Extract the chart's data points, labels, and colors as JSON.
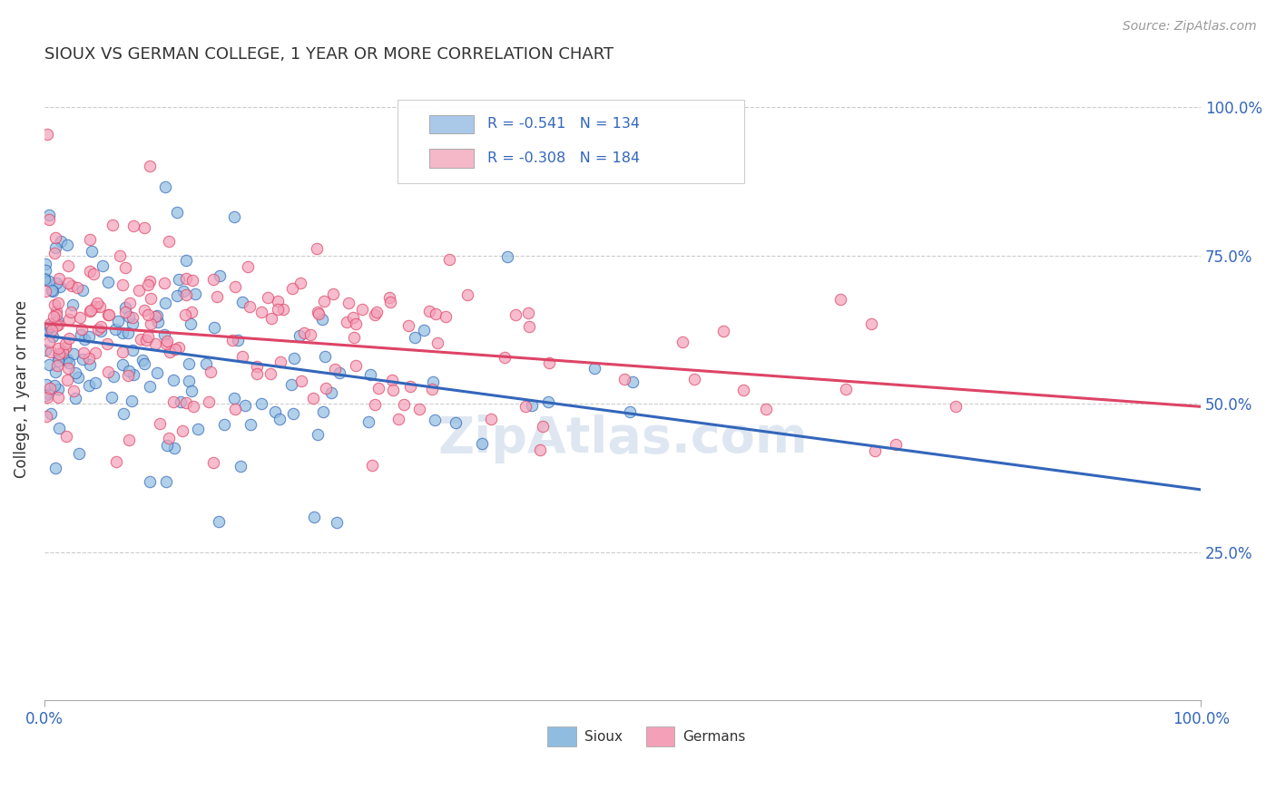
{
  "title": "SIOUX VS GERMAN COLLEGE, 1 YEAR OR MORE CORRELATION CHART",
  "source_text": "Source: ZipAtlas.com",
  "ylabel": "College, 1 year or more",
  "xlim": [
    0.0,
    1.0
  ],
  "ylim": [
    0.0,
    1.05
  ],
  "x_tick_labels": [
    "0.0%",
    "100.0%"
  ],
  "y_tick_labels_right": [
    "25.0%",
    "50.0%",
    "75.0%",
    "100.0%"
  ],
  "y_ticks_right": [
    0.25,
    0.5,
    0.75,
    1.0
  ],
  "legend_entries": [
    {
      "label": "R = -0.541   N = 134",
      "color": "#aac8e8"
    },
    {
      "label": "R = -0.308   N = 184",
      "color": "#f4b8c8"
    }
  ],
  "bottom_legend": [
    {
      "label": "Sioux",
      "color": "#90bce0"
    },
    {
      "label": "Germans",
      "color": "#f4a0b8"
    }
  ],
  "sioux_color": "#90bce0",
  "german_color": "#f4a0b8",
  "sioux_line_color": "#3366bb",
  "german_line_color": "#dd4466",
  "watermark_text": "ZipAtlas.com",
  "background_color": "#ffffff",
  "sioux_R": -0.541,
  "sioux_N": 134,
  "german_R": -0.308,
  "german_N": 184,
  "sioux_seed": 42,
  "german_seed": 99,
  "sioux_line_y0": 0.615,
  "sioux_line_y1": 0.355,
  "german_line_y0": 0.635,
  "german_line_y1": 0.495
}
